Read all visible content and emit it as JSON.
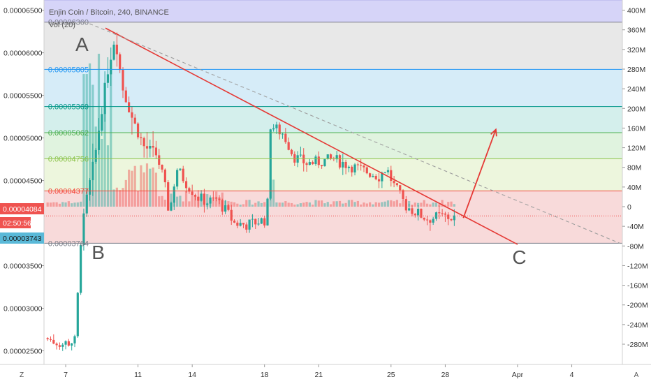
{
  "chart_data": {
    "type": "candlestick",
    "title": "Enjin Coin / Bitcoin, 240, BINANCE",
    "volume_label": "Vol (20)",
    "price_ticks": [
      "0.00006500",
      "0.00006000",
      "0.00005500",
      "0.00005000",
      "0.00004500",
      "0.00003500",
      "0.00003000",
      "0.00002500"
    ],
    "price_tick_values": [
      6.5e-05,
      6e-05,
      5.5e-05,
      5e-05,
      4.5e-05,
      3.5e-05,
      3e-05,
      2.5e-05
    ],
    "ylim": [
      2.34e-05,
      6.62e-05
    ],
    "volume_ticks": [
      "400M",
      "360M",
      "320M",
      "280M",
      "240M",
      "200M",
      "160M",
      "120M",
      "80M",
      "40M",
      "0",
      "-40M",
      "-80M",
      "-120M",
      "-160M",
      "-200M",
      "-240M",
      "-280M"
    ],
    "volume_tick_values": [
      400,
      360,
      320,
      280,
      240,
      200,
      160,
      120,
      80,
      40,
      0,
      -40,
      -80,
      -120,
      -160,
      -200,
      -240,
      -280
    ],
    "x_ticks": [
      "7",
      "11",
      "14",
      "18",
      "21",
      "25",
      "28",
      "Apr",
      "4"
    ],
    "x_tick_values": [
      7,
      11,
      14,
      18,
      21,
      25,
      28,
      32,
      35
    ],
    "xlim": [
      5.8,
      37.8
    ],
    "current_price": "0.00004084",
    "countdown": "02:50:56",
    "low_marker": "0.00003743",
    "fib_levels": [
      {
        "label": "0.00006360",
        "value": 6.36e-05,
        "color": "#787b86",
        "fill": "#e8e8e8"
      },
      {
        "label": "0.00005805",
        "value": 5.805e-05,
        "color": "#2196f3",
        "fill": "#d6ecf8"
      },
      {
        "label": "0.00005369",
        "value": 5.369e-05,
        "color": "#009688",
        "fill": "#d4efec"
      },
      {
        "label": "0.00005062",
        "value": 5.062e-05,
        "color": "#4caf50",
        "fill": "#e0f3df"
      },
      {
        "label": "0.00004756",
        "value": 4.756e-05,
        "color": "#8bc34a",
        "fill": "#edf6dd"
      },
      {
        "label": "0.00004377",
        "value": 4.377e-05,
        "color": "#f44336",
        "fill": "#f8dada"
      },
      {
        "label": "0.00003764",
        "value": 3.764e-05,
        "color": "#787b86",
        "fill": ""
      }
    ],
    "top_band": {
      "from": 6.62e-05,
      "to": 6.36e-05,
      "fill": "#d6d4f8"
    },
    "annotations": [
      {
        "text": "A",
        "x": 7.9,
        "y": 6.02e-05
      },
      {
        "text": "B",
        "x": 8.8,
        "y": 3.58e-05
      },
      {
        "text": "C",
        "x": 32.1,
        "y": 3.52e-05
      }
    ],
    "trend_lines": [
      {
        "style": "solid",
        "color": "#e53935",
        "from": [
          9.2,
          6.29e-05
        ],
        "to": [
          32.0,
          3.75e-05
        ]
      },
      {
        "style": "dashed",
        "color": "#9e9e9e",
        "from": [
          8.0,
          6.37e-05
        ],
        "to": [
          37.7,
          3.76e-05
        ]
      }
    ],
    "arrow": {
      "color": "#e53935",
      "from": [
        29.0,
        4.06e-05
      ],
      "to": [
        30.8,
        5.1e-05
      ]
    },
    "ohlc_keyframes": [
      [
        6.0,
        2.65e-05
      ],
      [
        7.0,
        2.58e-05
      ],
      [
        7.7,
        2.62e-05
      ],
      [
        8.0,
        3.8e-05
      ],
      [
        8.3,
        4.25e-05
      ],
      [
        8.8,
        4.8e-05
      ],
      [
        9.2,
        5.4e-05
      ],
      [
        9.5,
        5.8e-05
      ],
      [
        9.9,
        6.2e-05
      ],
      [
        10.3,
        5.6e-05
      ],
      [
        10.9,
        5.2e-05
      ],
      [
        11.5,
        4.9e-05
      ],
      [
        12.2,
        4.8e-05
      ],
      [
        12.6,
        4.5e-05
      ],
      [
        12.9,
        4.1e-05
      ],
      [
        13.3,
        4.65e-05
      ],
      [
        13.9,
        4.45e-05
      ],
      [
        14.5,
        4.3e-05
      ],
      [
        15.0,
        4.25e-05
      ],
      [
        15.5,
        4.28e-05
      ],
      [
        16.0,
        4.15e-05
      ],
      [
        16.5,
        4e-05
      ],
      [
        17.2,
        3.98e-05
      ],
      [
        17.8,
        4.02e-05
      ],
      [
        18.3,
        4.04e-05
      ],
      [
        18.5,
        5.15e-05
      ],
      [
        19.2,
        5.05e-05
      ],
      [
        19.8,
        4.78e-05
      ],
      [
        20.5,
        4.7e-05
      ],
      [
        21.2,
        4.72e-05
      ],
      [
        22.0,
        4.75e-05
      ],
      [
        22.8,
        4.68e-05
      ],
      [
        23.6,
        4.62e-05
      ],
      [
        24.5,
        4.55e-05
      ],
      [
        24.9,
        4.65e-05
      ],
      [
        25.3,
        4.45e-05
      ],
      [
        26.0,
        4.2e-05
      ],
      [
        26.6,
        4.12e-05
      ],
      [
        27.2,
        4.05e-05
      ],
      [
        28.0,
        4.08e-05
      ],
      [
        28.6,
        4.06e-05
      ]
    ]
  }
}
